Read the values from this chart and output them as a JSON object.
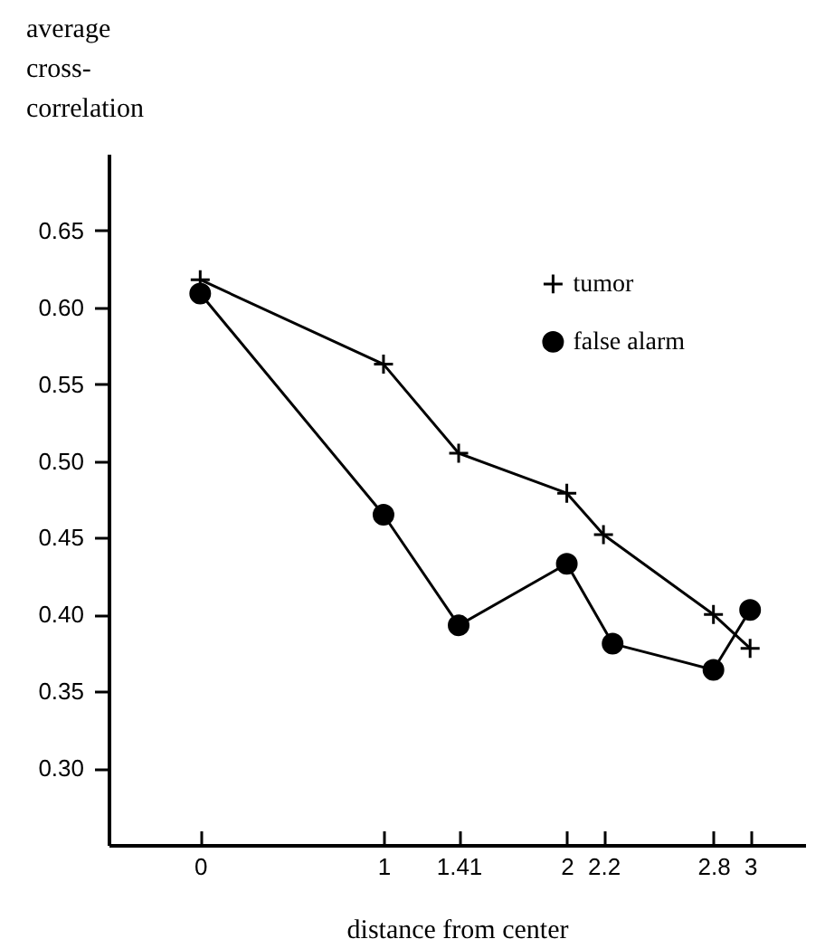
{
  "chart_data": {
    "type": "line",
    "xlabel": "distance from center",
    "ylabel": "average cross-correlation",
    "xlim": [
      -0.5,
      3.3
    ],
    "ylim": [
      0.25,
      0.7
    ],
    "xticks": [
      0,
      1,
      1.41,
      2,
      2.2,
      2.8,
      3
    ],
    "yticks": [
      {
        "value": 0.3,
        "label": "0.30"
      },
      0.35,
      {
        "value": 0.4,
        "label": "0.40"
      },
      0.45,
      {
        "value": 0.5,
        "label": "0.50"
      },
      0.55,
      {
        "value": 0.6,
        "label": "0.60"
      },
      0.65
    ],
    "grid": false,
    "legend": "top right",
    "series": [
      {
        "name": "tumor",
        "color": "#000000",
        "marker": "cross",
        "x": [
          0,
          1,
          1.41,
          2,
          2.2,
          2.8,
          3
        ],
        "values": [
          0.618,
          0.563,
          0.505,
          0.479,
          0.452,
          0.4,
          0.378
        ]
      },
      {
        "name": "false alarm",
        "color": "#000000",
        "marker": "circle",
        "x": [
          0,
          1,
          1.41,
          2,
          2.25,
          2.8,
          3
        ],
        "values": [
          0.609,
          0.465,
          0.393,
          0.433,
          0.381,
          0.364,
          0.403
        ]
      }
    ]
  }
}
